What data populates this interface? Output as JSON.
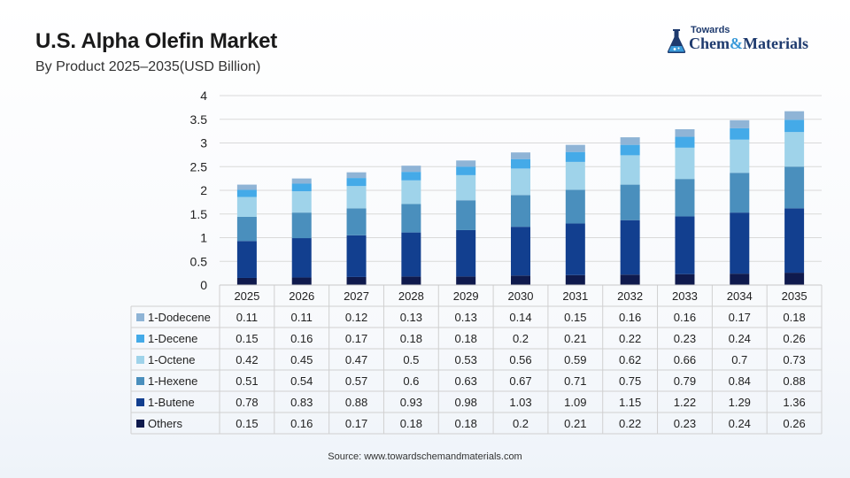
{
  "header": {
    "title": "U.S. Alpha Olefin Market",
    "subtitle": "By Product 2025–2035(USD Billion)"
  },
  "logo": {
    "line1": "Towards",
    "line2_a": "Chem",
    "line2_amp": "&",
    "line2_b": "Materials"
  },
  "source": "Source: www.towardschemandmaterials.com",
  "colors": {
    "Others": "#0f1a4d",
    "1-Butene": "#123f8f",
    "1-Hexene": "#4a8fbd",
    "1-Octene": "#9fd3ea",
    "1-Decene": "#44aae8",
    "1-Dodecene": "#8fb4d6"
  },
  "chart_data": {
    "type": "bar",
    "stacked": true,
    "categories": [
      "2025",
      "2026",
      "2027",
      "2028",
      "2029",
      "2030",
      "2031",
      "2032",
      "2033",
      "2034",
      "2035"
    ],
    "ylim": [
      0,
      4
    ],
    "yticks": [
      "0",
      "0.5",
      "1",
      "1.5",
      "2",
      "2.5",
      "3",
      "3.5",
      "4"
    ],
    "grid": true,
    "series": [
      {
        "name": "1-Dodecene",
        "values": [
          "0.11",
          "0.11",
          "0.12",
          "0.13",
          "0.13",
          "0.14",
          "0.15",
          "0.16",
          "0.16",
          "0.17",
          "0.18"
        ]
      },
      {
        "name": "1-Decene",
        "values": [
          "0.15",
          "0.16",
          "0.17",
          "0.18",
          "0.18",
          "0.2",
          "0.21",
          "0.22",
          "0.23",
          "0.24",
          "0.26"
        ]
      },
      {
        "name": "1-Octene",
        "values": [
          "0.42",
          "0.45",
          "0.47",
          "0.5",
          "0.53",
          "0.56",
          "0.59",
          "0.62",
          "0.66",
          "0.7",
          "0.73"
        ]
      },
      {
        "name": "1-Hexene",
        "values": [
          "0.51",
          "0.54",
          "0.57",
          "0.6",
          "0.63",
          "0.67",
          "0.71",
          "0.75",
          "0.79",
          "0.84",
          "0.88"
        ]
      },
      {
        "name": "1-Butene",
        "values": [
          "0.78",
          "0.83",
          "0.88",
          "0.93",
          "0.98",
          "1.03",
          "1.09",
          "1.15",
          "1.22",
          "1.29",
          "1.36"
        ]
      },
      {
        "name": "Others",
        "values": [
          "0.15",
          "0.16",
          "0.17",
          "0.18",
          "0.18",
          "0.2",
          "0.21",
          "0.22",
          "0.23",
          "0.24",
          "0.26"
        ]
      }
    ]
  }
}
